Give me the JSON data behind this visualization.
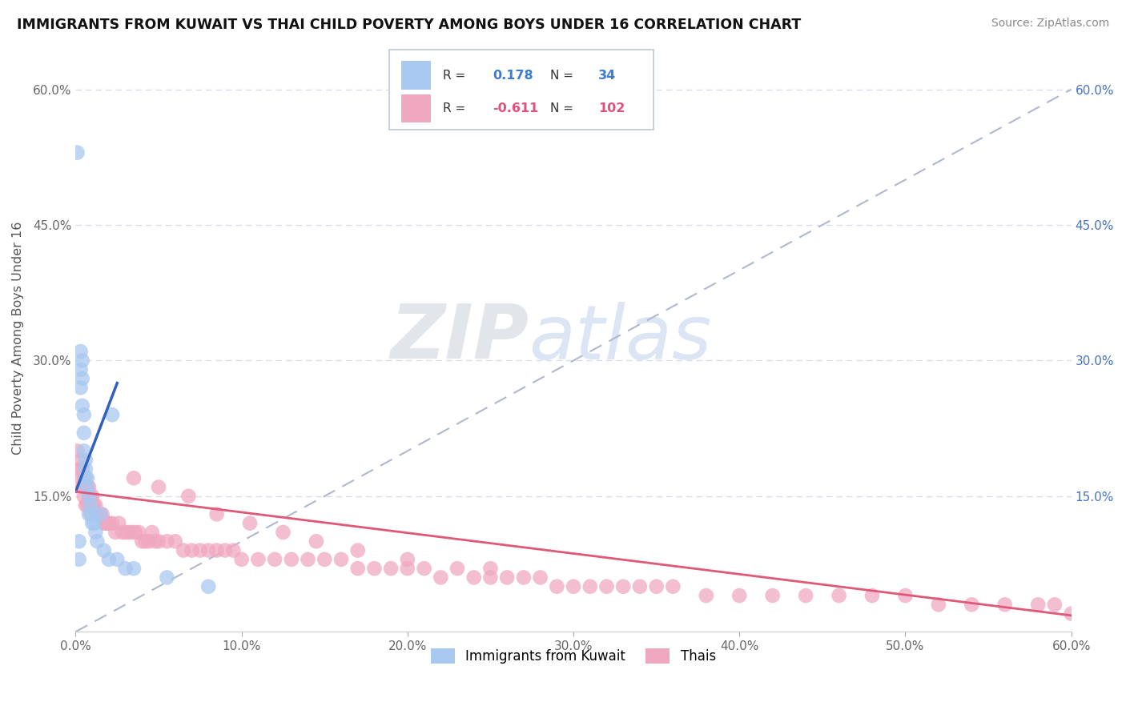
{
  "title": "IMMIGRANTS FROM KUWAIT VS THAI CHILD POVERTY AMONG BOYS UNDER 16 CORRELATION CHART",
  "source": "Source: ZipAtlas.com",
  "ylabel": "Child Poverty Among Boys Under 16",
  "xlim": [
    0.0,
    0.6
  ],
  "ylim": [
    0.0,
    0.65
  ],
  "xticks": [
    0.0,
    0.1,
    0.2,
    0.3,
    0.4,
    0.5,
    0.6
  ],
  "xticklabels": [
    "0.0%",
    "10.0%",
    "20.0%",
    "30.0%",
    "40.0%",
    "50.0%",
    "60.0%"
  ],
  "yticks": [
    0.0,
    0.15,
    0.3,
    0.45,
    0.6
  ],
  "yticklabels_left": [
    "",
    "15.0%",
    "30.0%",
    "45.0%",
    "60.0%"
  ],
  "yticklabels_right": [
    "",
    "15.0%",
    "30.0%",
    "45.0%",
    "60.0%"
  ],
  "blue_color": "#a8c8f0",
  "pink_color": "#f0a8c0",
  "blue_line_color": "#3060c0",
  "pink_line_color": "#e05878",
  "ref_line_color": "#b0b8d0",
  "background_color": "#ffffff",
  "grid_color": "#d8dce8",
  "kuwait_x": [
    0.001,
    0.002,
    0.002,
    0.003,
    0.003,
    0.003,
    0.004,
    0.004,
    0.004,
    0.005,
    0.005,
    0.005,
    0.006,
    0.006,
    0.006,
    0.007,
    0.007,
    0.008,
    0.008,
    0.009,
    0.01,
    0.01,
    0.011,
    0.012,
    0.013,
    0.015,
    0.017,
    0.02,
    0.022,
    0.025,
    0.03,
    0.035,
    0.055,
    0.08
  ],
  "kuwait_y": [
    0.53,
    0.1,
    0.08,
    0.31,
    0.29,
    0.27,
    0.3,
    0.28,
    0.25,
    0.24,
    0.22,
    0.2,
    0.19,
    0.18,
    0.17,
    0.17,
    0.16,
    0.15,
    0.13,
    0.14,
    0.13,
    0.12,
    0.12,
    0.11,
    0.1,
    0.13,
    0.09,
    0.08,
    0.24,
    0.08,
    0.07,
    0.07,
    0.06,
    0.05
  ],
  "thai_x": [
    0.001,
    0.002,
    0.003,
    0.003,
    0.004,
    0.004,
    0.005,
    0.005,
    0.006,
    0.006,
    0.007,
    0.007,
    0.008,
    0.008,
    0.009,
    0.009,
    0.01,
    0.01,
    0.011,
    0.012,
    0.013,
    0.014,
    0.015,
    0.016,
    0.017,
    0.018,
    0.019,
    0.02,
    0.022,
    0.024,
    0.026,
    0.028,
    0.03,
    0.032,
    0.034,
    0.036,
    0.038,
    0.04,
    0.042,
    0.044,
    0.046,
    0.048,
    0.05,
    0.055,
    0.06,
    0.065,
    0.07,
    0.075,
    0.08,
    0.085,
    0.09,
    0.095,
    0.1,
    0.11,
    0.12,
    0.13,
    0.14,
    0.15,
    0.16,
    0.17,
    0.18,
    0.19,
    0.2,
    0.21,
    0.22,
    0.23,
    0.24,
    0.25,
    0.26,
    0.27,
    0.28,
    0.29,
    0.3,
    0.31,
    0.32,
    0.33,
    0.34,
    0.36,
    0.38,
    0.4,
    0.42,
    0.44,
    0.46,
    0.48,
    0.5,
    0.52,
    0.54,
    0.56,
    0.58,
    0.59,
    0.6,
    0.35,
    0.25,
    0.2,
    0.17,
    0.145,
    0.125,
    0.105,
    0.085,
    0.068,
    0.05,
    0.035
  ],
  "thai_y": [
    0.2,
    0.18,
    0.17,
    0.19,
    0.18,
    0.16,
    0.17,
    0.15,
    0.16,
    0.14,
    0.16,
    0.14,
    0.16,
    0.15,
    0.15,
    0.13,
    0.15,
    0.14,
    0.14,
    0.14,
    0.13,
    0.13,
    0.13,
    0.13,
    0.12,
    0.12,
    0.12,
    0.12,
    0.12,
    0.11,
    0.12,
    0.11,
    0.11,
    0.11,
    0.11,
    0.11,
    0.11,
    0.1,
    0.1,
    0.1,
    0.11,
    0.1,
    0.1,
    0.1,
    0.1,
    0.09,
    0.09,
    0.09,
    0.09,
    0.09,
    0.09,
    0.09,
    0.08,
    0.08,
    0.08,
    0.08,
    0.08,
    0.08,
    0.08,
    0.07,
    0.07,
    0.07,
    0.07,
    0.07,
    0.06,
    0.07,
    0.06,
    0.06,
    0.06,
    0.06,
    0.06,
    0.05,
    0.05,
    0.05,
    0.05,
    0.05,
    0.05,
    0.05,
    0.04,
    0.04,
    0.04,
    0.04,
    0.04,
    0.04,
    0.04,
    0.03,
    0.03,
    0.03,
    0.03,
    0.03,
    0.02,
    0.05,
    0.07,
    0.08,
    0.09,
    0.1,
    0.11,
    0.12,
    0.13,
    0.15,
    0.16,
    0.17
  ],
  "blue_trend_x0": 0.0,
  "blue_trend_x1": 0.025,
  "blue_trend_y0": 0.155,
  "blue_trend_y1": 0.275,
  "pink_trend_x0": 0.0,
  "pink_trend_x1": 0.6,
  "pink_trend_y0": 0.155,
  "pink_trend_y1": 0.018,
  "watermark_zip": "ZIP",
  "watermark_atlas": "atlas",
  "legend_label1": "Immigrants from Kuwait",
  "legend_label2": "Thais"
}
